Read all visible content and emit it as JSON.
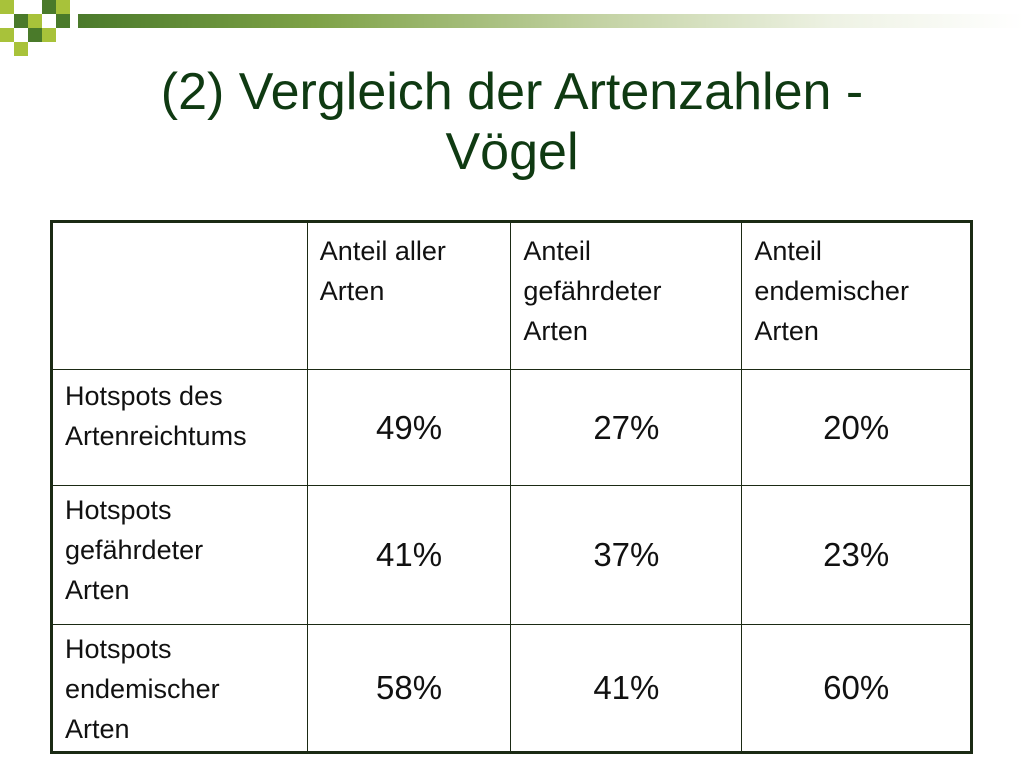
{
  "slide": {
    "title_line1": "(2) Vergleich der Artenzahlen -",
    "title_line2": "Vögel",
    "accent_dark": "#4a7a2a",
    "accent_light": "#a8c23a",
    "title_color": "#0f3a12"
  },
  "table": {
    "columns": [
      "",
      "Anteil aller Arten",
      "Anteil gefährdeter Arten",
      "Anteil endemischer Arten"
    ],
    "column_lines": [
      [],
      [
        "Anteil aller",
        "Arten"
      ],
      [
        "Anteil",
        "gefährdeter",
        "Arten"
      ],
      [
        "Anteil",
        "endemischer",
        "Arten"
      ]
    ],
    "rows": [
      {
        "label": "Hotspots des Artenreichtums",
        "label_lines": [
          "Hotspots des",
          "Artenreichtums"
        ],
        "values": [
          "49%",
          "27%",
          "20%"
        ]
      },
      {
        "label": "Hotspots gefährdeter Arten",
        "label_lines": [
          "Hotspots",
          "gefährdeter",
          "Arten"
        ],
        "values": [
          "41%",
          "37%",
          "23%"
        ]
      },
      {
        "label": "Hotspots endemischer Arten",
        "label_lines": [
          "Hotspots",
          "endemischer",
          "Arten"
        ],
        "values": [
          "58%",
          "41%",
          "60%"
        ]
      }
    ]
  }
}
